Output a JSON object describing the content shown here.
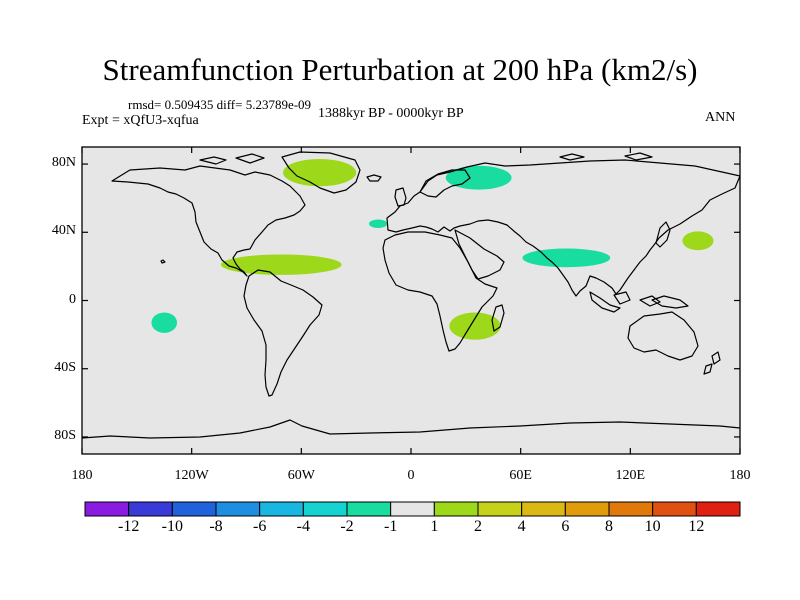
{
  "title": "Streamfunction Perturbation at 200 hPa (km2/s)",
  "stats_line": "rmsd= 0.509435 diff= 5.23789e-09",
  "experiment": "Expt = xQfU3-xqfua",
  "period": "1388kyr BP - 0000kyr BP",
  "season": "ANN",
  "y_axis": {
    "ticks": [
      {
        "lat": 80,
        "label": "80N"
      },
      {
        "lat": 40,
        "label": "40N"
      },
      {
        "lat": 0,
        "label": "0"
      },
      {
        "lat": -40,
        "label": "40S"
      },
      {
        "lat": -80,
        "label": "80S"
      }
    ]
  },
  "x_axis": {
    "ticks": [
      {
        "lon": -180,
        "label": "180"
      },
      {
        "lon": -120,
        "label": "120W"
      },
      {
        "lon": -60,
        "label": "60W"
      },
      {
        "lon": 0,
        "label": "0"
      },
      {
        "lon": 60,
        "label": "60E"
      },
      {
        "lon": 120,
        "label": "120E"
      },
      {
        "lon": 180,
        "label": "180"
      }
    ]
  },
  "colorbar": {
    "colors": [
      "#8a1be0",
      "#3a3ad8",
      "#1f62dc",
      "#1e8fe0",
      "#18b6e0",
      "#16d2d0",
      "#19dca0",
      "#e6e6e6",
      "#9ed81a",
      "#c6d21a",
      "#dcb814",
      "#e09c0a",
      "#e0780a",
      "#e05010",
      "#e02010"
    ],
    "labels": [
      "-12",
      "-10",
      "-8",
      "-6",
      "-4",
      "-2",
      "-1",
      "1",
      "2",
      "4",
      "6",
      "8",
      "10",
      "12"
    ]
  },
  "anomalies": [
    {
      "sign": "positive",
      "lon": -50,
      "lat": 75,
      "rlon": 20,
      "rlat": 8,
      "color": "#9ed81a"
    },
    {
      "sign": "negative",
      "lon": 37,
      "lat": 72,
      "rlon": 18,
      "rlat": 7,
      "color": "#19dca0"
    },
    {
      "sign": "negative",
      "lon": -18,
      "lat": 45,
      "rlon": 5,
      "rlat": 2.5,
      "color": "#19dca0"
    },
    {
      "sign": "positive",
      "lon": -71,
      "lat": 21,
      "rlon": 33,
      "rlat": 6,
      "color": "#9ed81a"
    },
    {
      "sign": "negative",
      "lon": 85,
      "lat": 25,
      "rlon": 24,
      "rlat": 5.5,
      "color": "#19dca0"
    },
    {
      "sign": "positive",
      "lon": 157,
      "lat": 35,
      "rlon": 8.5,
      "rlat": 5.5,
      "color": "#9ed81a"
    },
    {
      "sign": "negative",
      "lon": -135,
      "lat": -13,
      "rlon": 7,
      "rlat": 6,
      "color": "#19dca0"
    },
    {
      "sign": "positive",
      "lon": 35,
      "lat": -15,
      "rlon": 14,
      "rlat": 8,
      "color": "#9ed81a"
    }
  ]
}
